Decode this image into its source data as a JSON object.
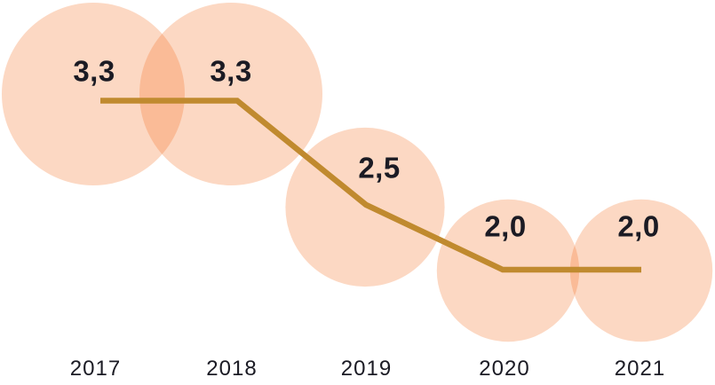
{
  "chart_data": {
    "type": "bubble-line",
    "title": "",
    "categories": [
      "2017",
      "2018",
      "2019",
      "2020",
      "2021"
    ],
    "series": [
      {
        "name": "value",
        "values": [
          3.3,
          3.3,
          2.5,
          2.0,
          2.0
        ],
        "value_labels": [
          "3,3",
          "3,3",
          "2,5",
          "2,0",
          "2,0"
        ]
      }
    ],
    "decimal_separator": ",",
    "bubble_area_proportional_to_value": true,
    "grid": false,
    "legend_position": "none",
    "axes_visible": false,
    "colors": {
      "bubble_fill": "rgba(243,111,33,0.27)",
      "line": "#C08A2F",
      "label_text": "#1B1B24",
      "background": "#FFFFFF"
    }
  }
}
